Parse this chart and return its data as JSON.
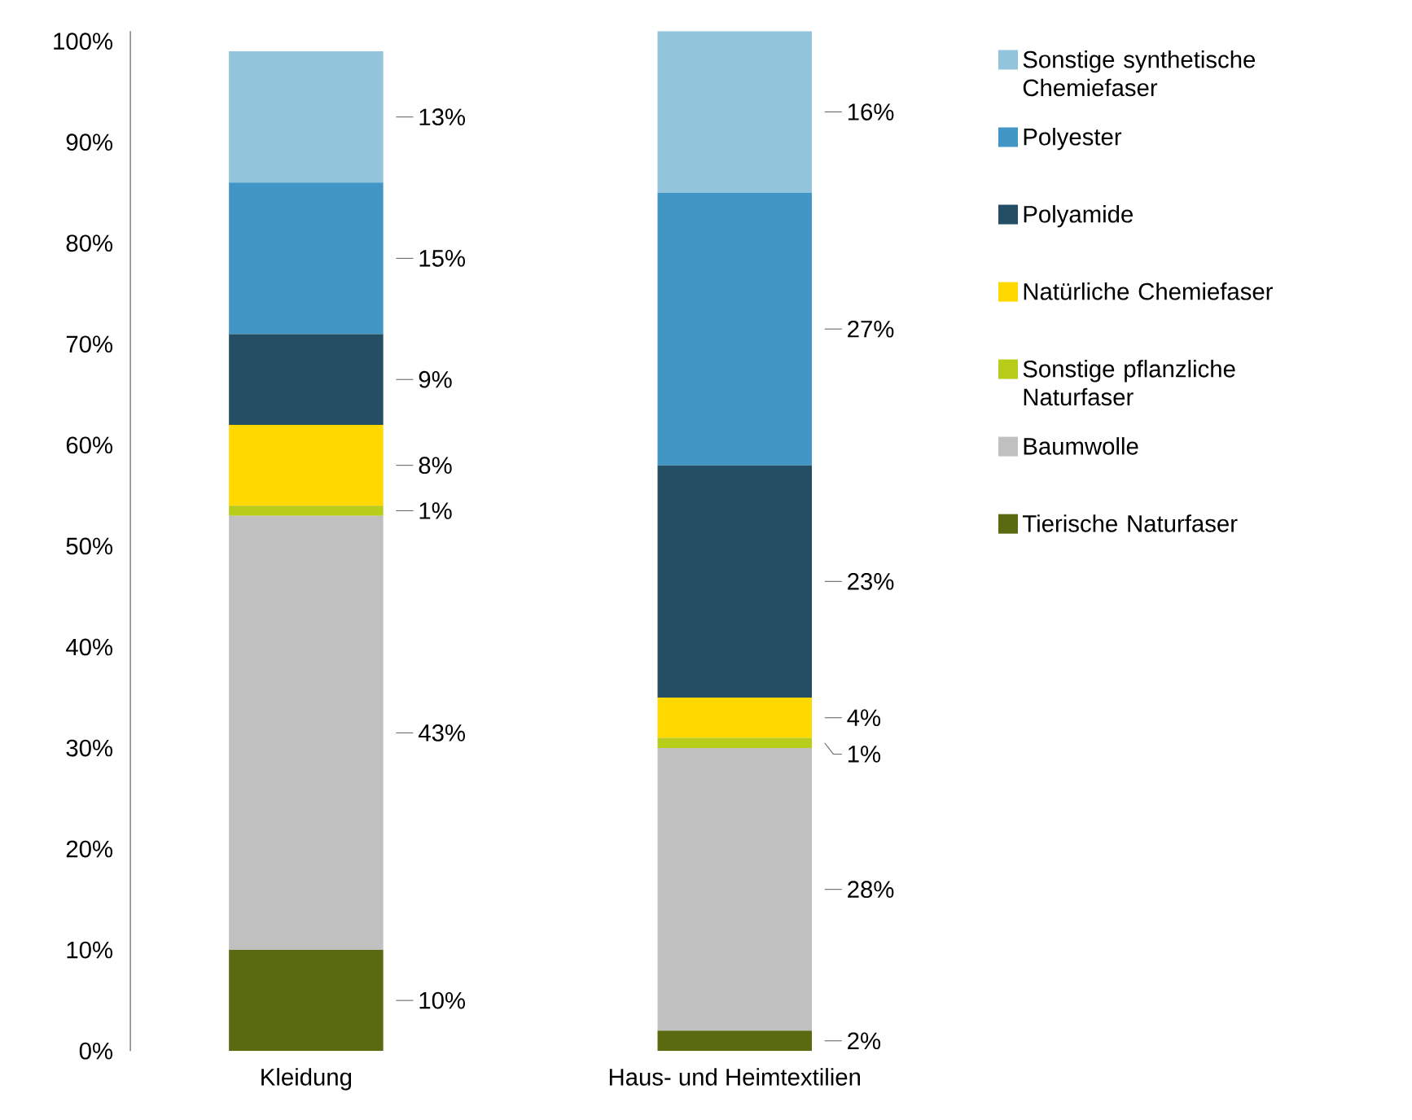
{
  "chart_data": {
    "type": "bar",
    "stacked": true,
    "legend": "right",
    "categories": [
      "Kleidung",
      "Haus- und Heimtextilien"
    ],
    "series": [
      {
        "name": "Tierische Naturfaser",
        "color": "#5a6a10",
        "values": [
          10,
          2
        ],
        "value_labels": [
          "10%",
          "2%"
        ]
      },
      {
        "name": "Baumwolle",
        "color": "#c0c0c0",
        "values": [
          43,
          28
        ],
        "value_labels": [
          "43%",
          "28%"
        ]
      },
      {
        "name": "Sonstige pflanzliche Naturfaser",
        "color": "#b8cc1a",
        "values": [
          1,
          1
        ],
        "value_labels": [
          "1%",
          "1%"
        ]
      },
      {
        "name": "Natürliche Chemiefaser",
        "color": "#ffd800",
        "values": [
          8,
          4
        ],
        "value_labels": [
          "8%",
          "4%"
        ]
      },
      {
        "name": "Polyamide",
        "color": "#234e63",
        "values": [
          9,
          23
        ],
        "value_labels": [
          "9%",
          "23%"
        ]
      },
      {
        "name": "Polyester",
        "color": "#4196c6",
        "values": [
          15,
          27
        ],
        "value_labels": [
          "15%",
          "27%"
        ]
      },
      {
        "name": "Sonstige synthetische Chemiefaser",
        "color": "#92c4dc",
        "values": [
          13,
          16
        ],
        "value_labels": [
          "13%",
          "16%"
        ]
      }
    ],
    "ylim": [
      0,
      101
    ],
    "yticks": [
      {
        "value": 0,
        "label": "0%"
      },
      {
        "value": 10,
        "label": "10%"
      },
      {
        "value": 20,
        "label": "20%"
      },
      {
        "value": 30,
        "label": "30%"
      },
      {
        "value": 40,
        "label": "40%"
      },
      {
        "value": 50,
        "label": "50%"
      },
      {
        "value": 60,
        "label": "60%"
      },
      {
        "value": 70,
        "label": "70%"
      },
      {
        "value": 80,
        "label": "80%"
      },
      {
        "value": 90,
        "label": "90%"
      },
      {
        "value": 100,
        "label": "100%"
      }
    ]
  }
}
